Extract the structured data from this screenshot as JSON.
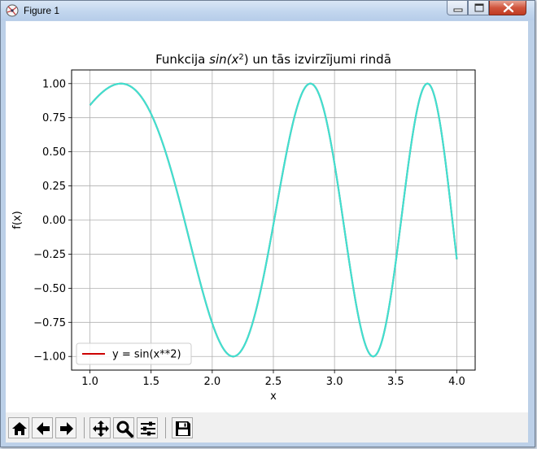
{
  "window": {
    "title": "Figure 1"
  },
  "toolbar": {
    "buttons": [
      {
        "name": "home-icon"
      },
      {
        "name": "back-arrow-icon"
      },
      {
        "name": "forward-arrow-icon"
      },
      {
        "name": "pan-move-icon"
      },
      {
        "name": "zoom-magnifier-icon"
      },
      {
        "name": "configure-subplots-icon"
      },
      {
        "name": "save-floppy-icon"
      }
    ]
  },
  "chart_data": {
    "type": "line",
    "function": "sin(x^2)",
    "title_prefix": "Funkcija ",
    "title_math_base": "sin(x",
    "title_math_exp": "2",
    "title_math_close": ")",
    "title_suffix": " un tās izvirzījumi rindā",
    "xlabel": "x",
    "ylabel": "f(x)",
    "xlim": [
      0.85,
      4.15
    ],
    "ylim": [
      -1.1,
      1.1
    ],
    "x_range": [
      1.0,
      4.0
    ],
    "xticks": [
      1.0,
      1.5,
      2.0,
      2.5,
      3.0,
      3.5,
      4.0
    ],
    "xtick_labels": [
      "1.0",
      "1.5",
      "2.0",
      "2.5",
      "3.0",
      "3.5",
      "4.0"
    ],
    "yticks": [
      -1.0,
      -0.75,
      -0.5,
      -0.25,
      0.0,
      0.25,
      0.5,
      0.75,
      1.0
    ],
    "ytick_labels": [
      "−1.00",
      "−0.75",
      "−0.50",
      "−0.25",
      "0.00",
      "0.25",
      "0.50",
      "0.75",
      "1.00"
    ],
    "grid": true,
    "legend_position": "lower-left",
    "series": [
      {
        "name": "y = sin(x**2)",
        "color": "#cc0000",
        "legend_only": true
      },
      {
        "name": "",
        "color": "#40e0d0"
      }
    ]
  }
}
